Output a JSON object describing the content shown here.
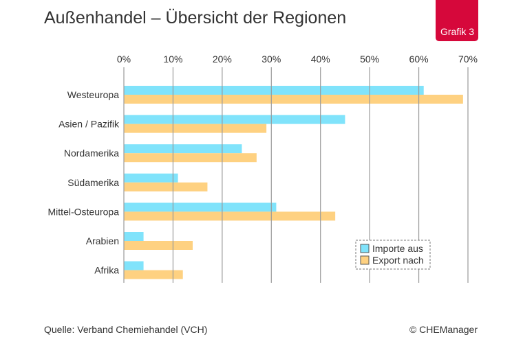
{
  "header": {
    "title": "Außenhandel – Übersicht der Regionen",
    "badge": "Grafik 3"
  },
  "footer": {
    "source": "Quelle: Verband Chemiehandel (VCH)",
    "copyright": "© CHEManager"
  },
  "chart_data": {
    "type": "bar",
    "orientation": "horizontal",
    "title": "Außenhandel – Übersicht der Regionen",
    "categories": [
      "Westeuropa",
      "Asien / Pazifik",
      "Nordamerika",
      "Südamerika",
      "Mittel-Osteuropa",
      "Arabien",
      "Afrika"
    ],
    "series": [
      {
        "name": "Importe aus",
        "color": "#80e3fb",
        "values": [
          61,
          45,
          24,
          11,
          31,
          4,
          4
        ]
      },
      {
        "name": "Export nach",
        "color": "#fed181",
        "values": [
          69,
          29,
          27,
          17,
          43,
          14,
          12
        ]
      }
    ],
    "xlim": [
      0,
      70
    ],
    "xticks": [
      "0%",
      "10%",
      "20%",
      "30%",
      "40%",
      "50%",
      "60%",
      "70%"
    ],
    "xaxis_position": "top",
    "grid": true,
    "legend": "bottom-right",
    "gridline_color": "#999999"
  }
}
